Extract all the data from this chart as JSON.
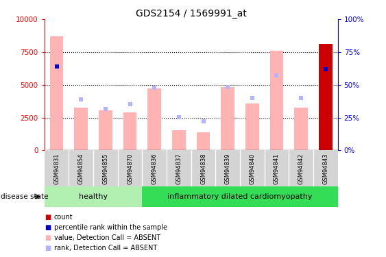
{
  "title": "GDS2154 / 1569991_at",
  "samples": [
    "GSM94831",
    "GSM94854",
    "GSM94855",
    "GSM94870",
    "GSM94836",
    "GSM94837",
    "GSM94838",
    "GSM94839",
    "GSM94840",
    "GSM94841",
    "GSM94842",
    "GSM94843"
  ],
  "value_absent": [
    8700,
    3250,
    3050,
    2900,
    4700,
    1550,
    1400,
    4850,
    3600,
    7600,
    3250,
    8100
  ],
  "rank_absent": [
    6400,
    3900,
    3150,
    3500,
    4800,
    2550,
    2200,
    4850,
    4000,
    5700,
    4000,
    6200
  ],
  "count_present_idx": [
    11
  ],
  "count_present_vals": [
    8100
  ],
  "rank_present_idx": [
    0,
    11
  ],
  "rank_present_vals": [
    6400,
    6200
  ],
  "healthy_count": 4,
  "ylim_left": [
    0,
    10000
  ],
  "ylim_right": [
    0,
    100
  ],
  "yticks_left": [
    0,
    2500,
    5000,
    7500,
    10000
  ],
  "yticks_right": [
    0,
    25,
    50,
    75,
    100
  ],
  "ytick_labels_right": [
    "0%",
    "25%",
    "50%",
    "75%",
    "100%"
  ],
  "color_value_absent": "#ffb3b3",
  "color_rank_absent": "#b3b3ff",
  "color_count": "#cc0000",
  "color_rank": "#0000cc",
  "healthy_label": "healthy",
  "disease_label": "inflammatory dilated cardiomyopathy",
  "disease_state_label": "disease state",
  "legend_items": [
    "count",
    "percentile rank within the sample",
    "value, Detection Call = ABSENT",
    "rank, Detection Call = ABSENT"
  ],
  "legend_colors": [
    "#cc0000",
    "#0000cc",
    "#ffb3b3",
    "#b3b3ff"
  ],
  "healthy_bg": "#b2f0b2",
  "disease_bg": "#33dd55",
  "tick_bg": "#d4d4d4"
}
